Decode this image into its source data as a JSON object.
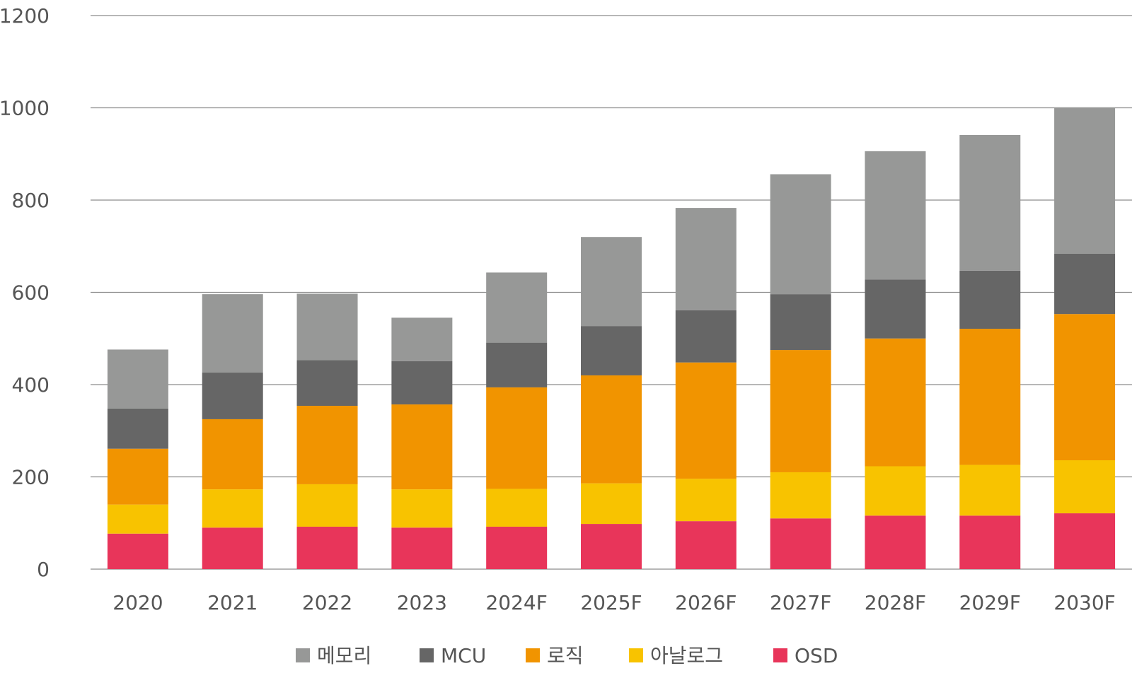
{
  "chart_data": {
    "type": "bar",
    "stacked": true,
    "title": "",
    "xlabel": "",
    "ylabel": "",
    "ylim": [
      0,
      1200
    ],
    "y_ticks": [
      0,
      200,
      400,
      600,
      800,
      1000,
      1200
    ],
    "grid": true,
    "legend_position": "bottom",
    "categories": [
      "2020",
      "2021",
      "2022",
      "2023",
      "2024F",
      "2025F",
      "2026F",
      "2027F",
      "2028F",
      "2029F",
      "2030F"
    ],
    "series": [
      {
        "name": "OSD",
        "color": "#e8355a",
        "values": [
          77,
          90,
          92,
          90,
          92,
          98,
          104,
          110,
          116,
          116,
          121
        ]
      },
      {
        "name": "아날로그",
        "color": "#f8c300",
        "values": [
          63,
          83,
          92,
          83,
          82,
          88,
          92,
          100,
          107,
          110,
          115
        ]
      },
      {
        "name": "로직",
        "color": "#f19400",
        "values": [
          121,
          152,
          170,
          184,
          220,
          234,
          252,
          265,
          277,
          295,
          317
        ]
      },
      {
        "name": "MCU",
        "color": "#666666",
        "values": [
          87,
          101,
          99,
          94,
          97,
          107,
          113,
          121,
          128,
          126,
          131
        ]
      },
      {
        "name": "메모리",
        "color": "#979897",
        "values": [
          128,
          170,
          144,
          94,
          152,
          193,
          222,
          260,
          278,
          294,
          317
        ]
      }
    ],
    "legend_order": [
      "메모리",
      "MCU",
      "로직",
      "아날로그",
      "OSD"
    ]
  }
}
